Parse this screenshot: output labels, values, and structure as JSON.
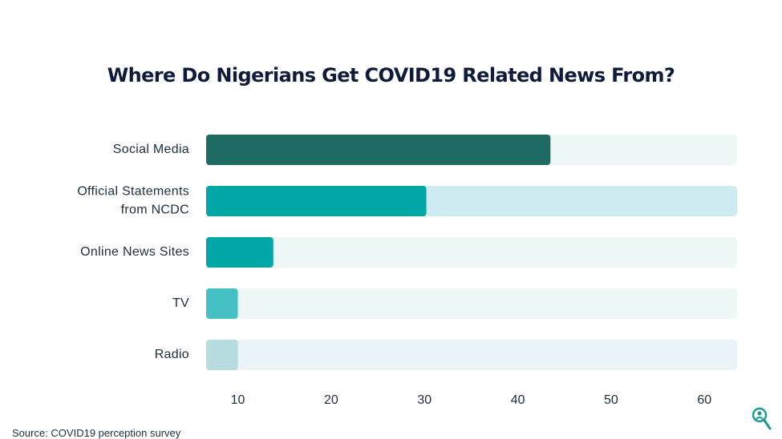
{
  "chart_data": {
    "type": "bar",
    "orientation": "horizontal",
    "title": "Where Do Nigerians Get COVID19 Related News From?",
    "categories": [
      "Social Media",
      "Official Statements\nfrom NCDC",
      "Online News Sites",
      "TV",
      "Radio"
    ],
    "values": [
      43.5,
      30.2,
      13.8,
      10,
      10
    ],
    "x_ticks": [
      10,
      20,
      30,
      40,
      50,
      60
    ],
    "xlim": [
      6.6,
      63.5
    ],
    "xlabel": "",
    "ylabel": "",
    "grid": false,
    "legend": "none",
    "bar_colors": [
      "#1d6b63",
      "#00a7a6",
      "#00a7a6",
      "#46c1c3",
      "#b6dcdf"
    ],
    "track_colors": [
      "#edf7f6",
      "#cfebf2",
      "#edf7f6",
      "#edf7f6",
      "#eaf4f8"
    ]
  },
  "source": "Source: COVID19 perception survey",
  "logo_icon": "magnifier-person-icon",
  "colors": {
    "title": "#0f1b3d",
    "label": "#1f2d3d",
    "logo": "#1a9b98"
  }
}
